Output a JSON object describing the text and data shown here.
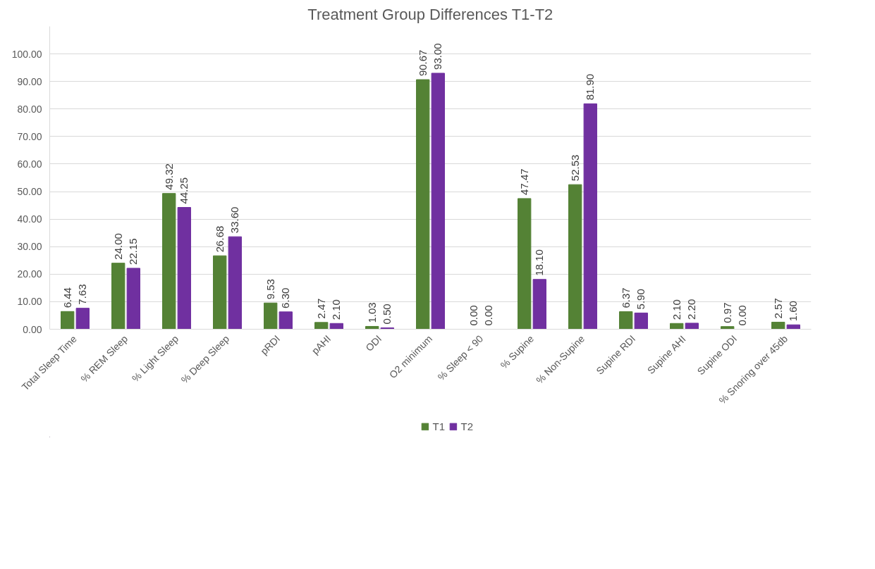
{
  "chart_data": {
    "type": "bar",
    "title": "Treatment Group Differences T1-T2",
    "categories": [
      "Total Sleep Time",
      "% REM Sleep",
      "% Light Sleep",
      "% Deep Sleep",
      "pRDI",
      "pAHI",
      "ODI",
      "O2 minimum",
      "% Sleep < 90",
      "% Supine",
      "% Non-Supine",
      "Supine RDI",
      "Supine AHI",
      "Supine ODI",
      "% Snoring over 45db"
    ],
    "series": [
      {
        "name": "T1",
        "color": "#548235",
        "values": [
          6.44,
          24.0,
          49.32,
          26.68,
          9.53,
          2.47,
          1.03,
          90.67,
          0.0,
          47.47,
          52.53,
          6.37,
          2.1,
          0.97,
          2.57
        ],
        "value_labels": [
          "6.44",
          "24.00",
          "49.32",
          "26.68",
          "9.53",
          "2.47",
          "1.03",
          "90.67",
          "0.00",
          "47.47",
          "52.53",
          "6.37",
          "2.10",
          "0.97",
          "2.57"
        ]
      },
      {
        "name": "T2",
        "color": "#7030a0",
        "values": [
          7.63,
          22.15,
          44.25,
          33.6,
          6.3,
          2.1,
          0.5,
          93.0,
          0.0,
          18.1,
          81.9,
          5.9,
          2.2,
          0.0,
          1.6
        ],
        "value_labels": [
          "7.63",
          "22.15",
          "44.25",
          "33.60",
          "6.30",
          "2.10",
          "0.50",
          "93.00",
          "0.00",
          "18.10",
          "81.90",
          "5.90",
          "2.20",
          "0.00",
          "1.60"
        ]
      }
    ],
    "ylim": [
      0,
      110
    ],
    "yticks": [
      {
        "value": 0,
        "label": "0.00"
      },
      {
        "value": 10,
        "label": "10.00"
      },
      {
        "value": 20,
        "label": "20.00"
      },
      {
        "value": 30,
        "label": "30.00"
      },
      {
        "value": 40,
        "label": "40.00"
      },
      {
        "value": 50,
        "label": "50.00"
      },
      {
        "value": 60,
        "label": "60.00"
      },
      {
        "value": 70,
        "label": "70.00"
      },
      {
        "value": 80,
        "label": "80.00"
      },
      {
        "value": 90,
        "label": "90.00"
      },
      {
        "value": 100,
        "label": "100.00"
      }
    ],
    "grid": "y",
    "legend": "bottom"
  }
}
